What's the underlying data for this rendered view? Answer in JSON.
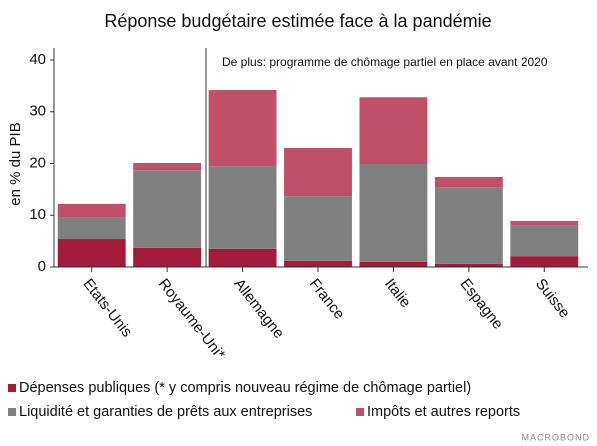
{
  "chart_data": {
    "type": "stacked_bar",
    "title": "Réponse budgétaire estimée face à la pandémie",
    "ylabel": "en % du PIB",
    "annotation": "De plus: programme de chômage partiel en place avant 2020",
    "watermark": "MACROBOND",
    "categories": [
      "Etats-Unis",
      "Royaume-Uni*",
      "Allemagne",
      "France",
      "Italie",
      "Espagne",
      "Suisse"
    ],
    "series": [
      {
        "name": "Dépenses publiques (* y compris nouveau régime de chômage partiel)",
        "color": "#a31a3a",
        "values": [
          5.4,
          3.7,
          3.5,
          1.2,
          1.0,
          0.6,
          2.1
        ]
      },
      {
        "name": "Liquidité et garanties de prêts aux entreprises",
        "color": "#808080",
        "values": [
          4.1,
          15.0,
          16.0,
          12.5,
          18.9,
          14.8,
          6.0
        ]
      },
      {
        "name": "Impôts et autres reports",
        "color": "#c0506a",
        "values": [
          2.7,
          1.4,
          14.7,
          9.3,
          12.9,
          2.0,
          0.8
        ]
      }
    ],
    "ylim": [
      0,
      40
    ],
    "yticks": [
      0,
      10,
      20,
      30,
      40
    ],
    "grid": false
  }
}
